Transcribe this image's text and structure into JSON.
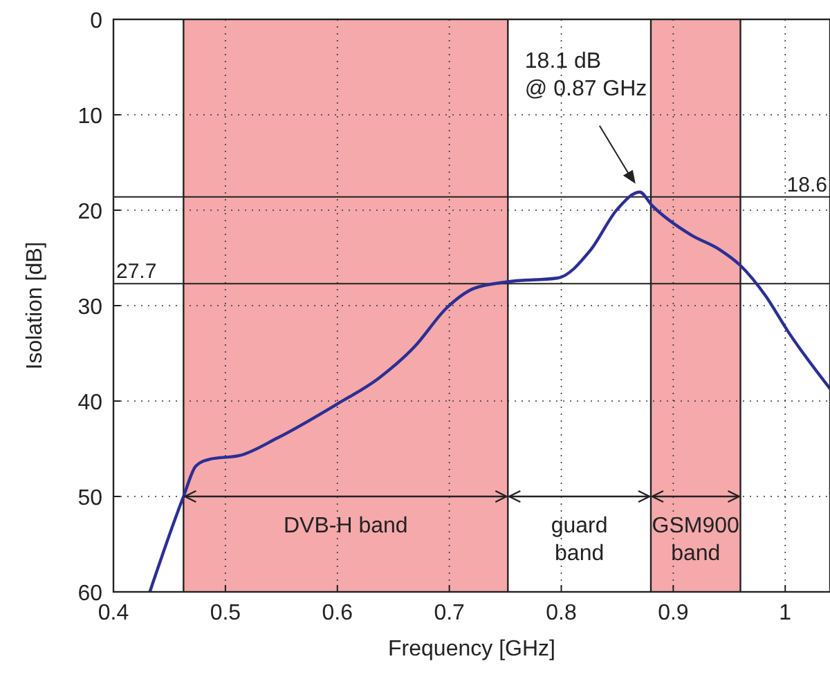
{
  "chart_data": {
    "type": "line",
    "xlabel": "Frequency [GHz]",
    "ylabel": "Isolation [dB]",
    "xlim": [
      0.4,
      1.04
    ],
    "ylim": [
      60,
      0
    ],
    "xticks": [
      0.4,
      0.5,
      0.6,
      0.7,
      0.8,
      0.9,
      {
        "value": 1,
        "label": "1"
      }
    ],
    "yticks": [
      0,
      10,
      20,
      30,
      40,
      50,
      60
    ],
    "grid": true,
    "line_style": "solid",
    "marker": "none",
    "series": [
      {
        "color": "#2b2f94",
        "x": [
          0.4325,
          0.4626,
          0.4737,
          0.486,
          0.513,
          0.546,
          0.6,
          0.637,
          0.669,
          0.698,
          0.722,
          0.7523,
          0.797,
          0.826,
          0.85,
          0.87,
          0.881,
          0.916,
          0.941,
          0.96,
          0.982,
          1.003,
          1.04
        ],
        "values": [
          60,
          50,
          46.8,
          46.1,
          45.7,
          43.9,
          40.3,
          37.6,
          34.3,
          30.2,
          28.2,
          27.5,
          27.1,
          24.2,
          19.9,
          18.1,
          19.5,
          22.6,
          24.1,
          25.8,
          28.9,
          32.8,
          38.7
        ]
      }
    ],
    "bands": [
      {
        "axis": "x",
        "from": 0.4626,
        "to": 0.7523,
        "label": "DVB-H band",
        "color": "#f5a9ab"
      },
      {
        "axis": "x",
        "from": 0.88,
        "to": 0.96,
        "label": "GSM900\nband",
        "color": "#f5a9ab"
      }
    ],
    "ref_lines": [
      {
        "axis": "y",
        "value": 18.6,
        "label": "18.6"
      },
      {
        "axis": "y",
        "value": 27.7,
        "label": "27.7"
      }
    ],
    "annotations": [
      "18.1 dB\n@ 0.87 GHz",
      "guard\nband"
    ]
  }
}
